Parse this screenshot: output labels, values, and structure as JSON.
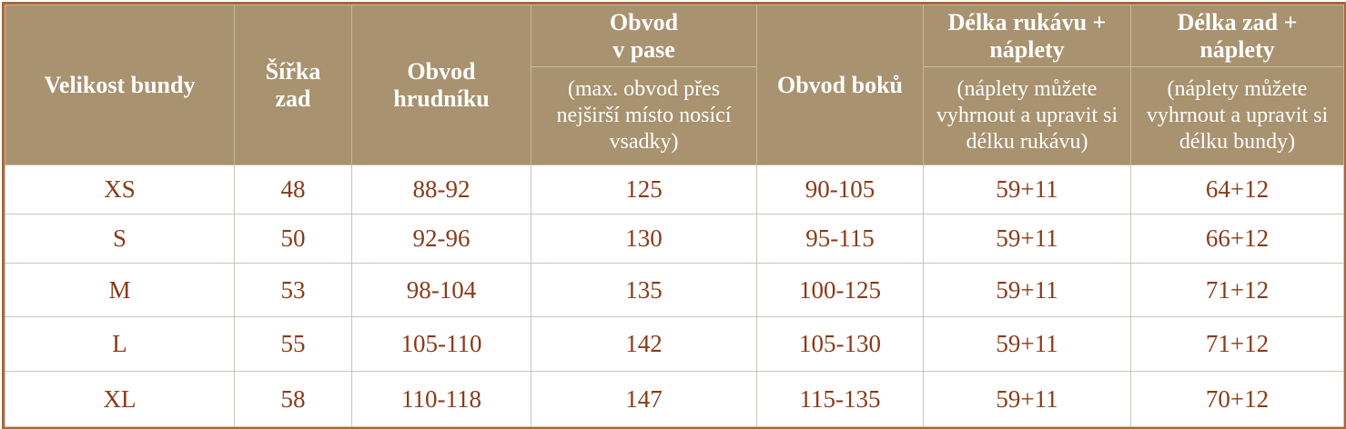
{
  "table": {
    "columns": [
      {
        "title": "Velikost bundy"
      },
      {
        "title": "Šířka\nzad"
      },
      {
        "title": "Obvod\nhrudníku"
      },
      {
        "title": "Obvod\nv pase",
        "note": "(max. obvod přes nejširší místo nosící vsadky)"
      },
      {
        "title": "Obvod boků"
      },
      {
        "title": "Délka rukávu +\nnáplety",
        "note": "(náplety můžete vyhrnout a upravit si délku rukávu)"
      },
      {
        "title": "Délka zad +\nnáplety",
        "note": "(náplety můžete vyhrnout a upravit si délku bundy)"
      }
    ],
    "rows": [
      [
        "XS",
        "48",
        "88-92",
        "125",
        "90-105",
        "59+11",
        "64+12"
      ],
      [
        "S",
        "50",
        "92-96",
        "130",
        "95-115",
        "59+11",
        "66+12"
      ],
      [
        "M",
        "53",
        "98-104",
        "135",
        "100-125",
        "59+11",
        "71+12"
      ],
      [
        "L",
        "55",
        "105-110",
        "142",
        "105-130",
        "59+11",
        "71+12"
      ],
      [
        "XL",
        "58",
        "110-118",
        "147",
        "115-135",
        "59+11",
        "70+12"
      ]
    ]
  }
}
